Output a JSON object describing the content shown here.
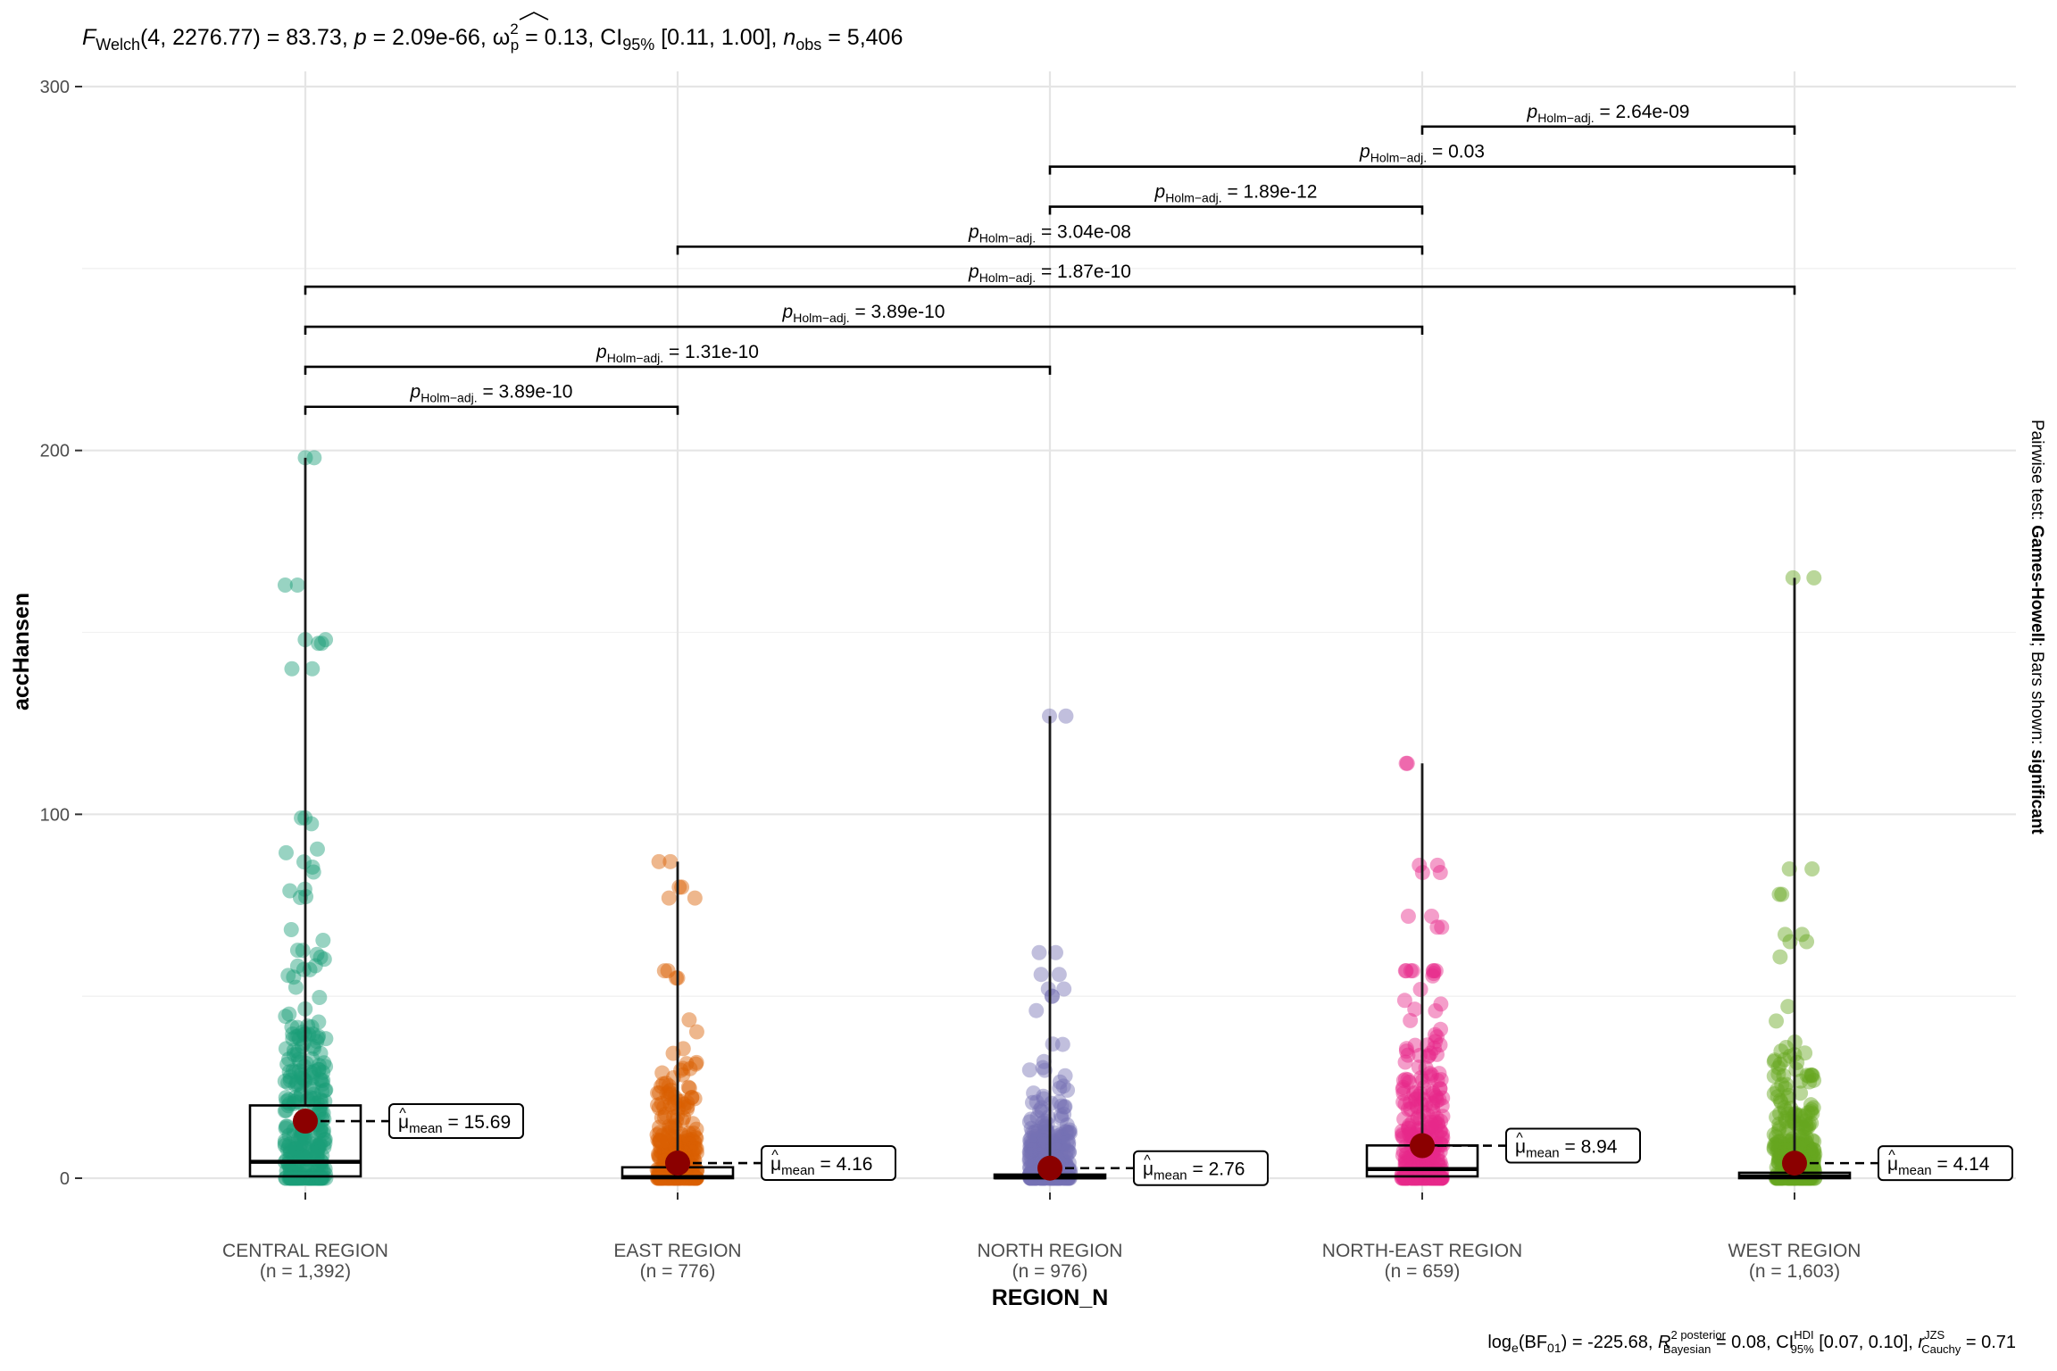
{
  "chart_data": {
    "type": "boxplot-jitter",
    "subtitle": {
      "stat": "F",
      "stat_sub": "Welch",
      "args": "(4, 2276.77) = 83.73, ",
      "p_label": "p",
      "p_text": " = 2.09e-66, ",
      "effect": "ω",
      "effect_sup": "2",
      "effect_sub": "p",
      "effect_text": " = 0.13, CI",
      "ci_sub": "95%",
      "ci_text": " [0.11, 1.00], ",
      "n_label": "n",
      "n_sub": "obs",
      "n_text": " = 5,406"
    },
    "xlabel": "REGION_N",
    "ylabel": "accHansen",
    "ylim": [
      -10,
      302
    ],
    "yticks": [
      0,
      100,
      200,
      300
    ],
    "categories": [
      {
        "name": "CENTRAL REGION",
        "n": "(n = 1,392)",
        "color": "#1b9e77",
        "mean": 15.69,
        "mean_label": "15.69",
        "q1": 0.5,
        "median": 4.5,
        "q3": 20,
        "whisker_max": 198,
        "max_points": [
          198,
          163,
          148,
          147,
          140
        ]
      },
      {
        "name": "EAST REGION",
        "n": "(n = 776)",
        "color": "#d95f02",
        "mean": 4.16,
        "mean_label": "4.16",
        "q1": 0,
        "median": 0.3,
        "q3": 3,
        "whisker_max": 87,
        "max_points": [
          87,
          80,
          77,
          57,
          55
        ]
      },
      {
        "name": "NORTH REGION",
        "n": "(n = 976)",
        "color": "#7570b3",
        "mean": 2.76,
        "mean_label": "2.76",
        "q1": 0,
        "median": 0.2,
        "q3": 1,
        "whisker_max": 127,
        "max_points": [
          127,
          62,
          56,
          52,
          50
        ]
      },
      {
        "name": "NORTH-EAST REGION",
        "n": "(n = 659)",
        "color": "#e7298a",
        "mean": 8.94,
        "mean_label": "8.94",
        "q1": 0.5,
        "median": 2.5,
        "q3": 9,
        "whisker_max": 114,
        "max_points": [
          114,
          86,
          84,
          72,
          69
        ]
      },
      {
        "name": "WEST REGION",
        "n": "(n = 1,603)",
        "color": "#66a61e",
        "mean": 4.14,
        "mean_label": "4.14",
        "q1": 0,
        "median": 0.5,
        "q3": 1.5,
        "whisker_max": 165,
        "max_points": [
          165,
          85,
          78,
          67,
          65
        ]
      }
    ],
    "mean_symbol": "μ",
    "mean_sub": "mean",
    "pairwise": {
      "p_label": "p",
      "p_sub": "Holm−adj.",
      "comparisons": [
        {
          "from": 0,
          "to": 1,
          "value": "3.89e-10",
          "y": 212
        },
        {
          "from": 0,
          "to": 2,
          "value": "1.31e-10",
          "y": 223
        },
        {
          "from": 0,
          "to": 3,
          "value": "3.89e-10",
          "y": 234
        },
        {
          "from": 0,
          "to": 4,
          "value": "1.87e-10",
          "y": 245
        },
        {
          "from": 1,
          "to": 3,
          "value": "3.04e-08",
          "y": 256
        },
        {
          "from": 2,
          "to": 3,
          "value": "1.89e-12",
          "y": 267
        },
        {
          "from": 2,
          "to": 4,
          "value": "0.03",
          "y": 278
        },
        {
          "from": 3,
          "to": 4,
          "value": "2.64e-09",
          "y": 289
        }
      ]
    },
    "side_caption": {
      "prefix": "Pairwise test: ",
      "test": "Games-Howell",
      "middle": "; Bars shown: ",
      "shown": "significant"
    },
    "caption": {
      "a": "log",
      "a_sub": "e",
      "b": "(BF",
      "b_sub": "01",
      "c": ") = -225.68, ",
      "r": "R",
      "r_sup": "2",
      "r_sup2": "posterior",
      "r_sub": "Bayesian",
      "d": " = 0.08, CI",
      "ci_sup": "HDI",
      "ci_sub": "95%",
      "e": " [0.07, 0.10], ",
      "rc": "r",
      "rc_sup": "JZS",
      "rc_sub": "Cauchy",
      "f": " = 0.71"
    },
    "grid": true
  }
}
